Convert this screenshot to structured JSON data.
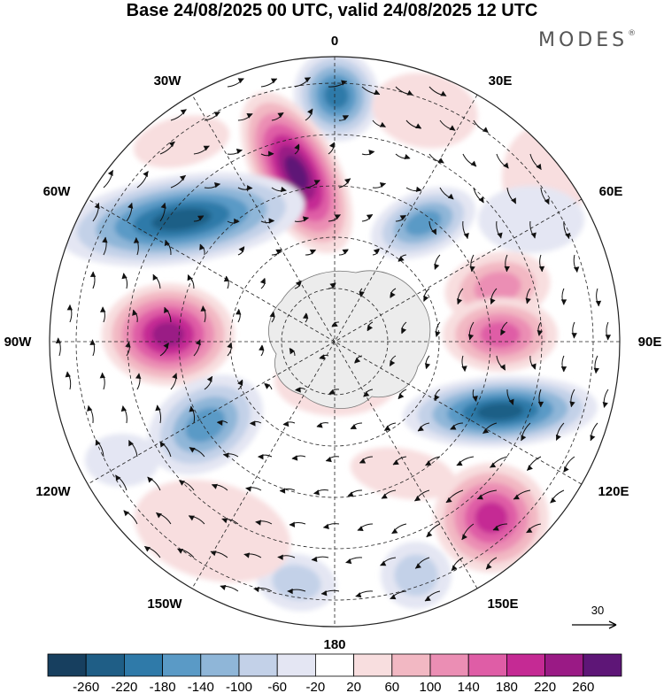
{
  "title": "Base 24/08/2025 00 UTC, valid 24/08/2025 12 UTC",
  "brand": "MODES",
  "brand_mark": "®",
  "longitude_labels": {
    "lon0": "0",
    "lon30e": "30E",
    "lon60e": "60E",
    "lon90e": "90E",
    "lon120e": "120E",
    "lon150e": "150E",
    "lon180": "180",
    "lon150w": "150W",
    "lon120w": "120W",
    "lon90w": "90W",
    "lon60w": "60W",
    "lon30w": "30W"
  },
  "reference_vector": {
    "label": "30"
  },
  "colorbar": {
    "colors": [
      "#173f5f",
      "#1f5e86",
      "#2f7aa9",
      "#5a9ac6",
      "#8fb6d8",
      "#c3d1e8",
      "#e4e6f3",
      "#ffffff",
      "#f8dedf",
      "#f2b8c3",
      "#eb8eb4",
      "#df5da6",
      "#c52a94",
      "#9a1a85",
      "#5e1677"
    ],
    "tick_labels": [
      "-260",
      "-220",
      "-180",
      "-140",
      "-100",
      "-60",
      "-20",
      "20",
      "60",
      "100",
      "140",
      "180",
      "220",
      "260"
    ]
  },
  "colors": {
    "background": "#ffffff",
    "land": "#ececec",
    "grid": "#222222"
  }
}
